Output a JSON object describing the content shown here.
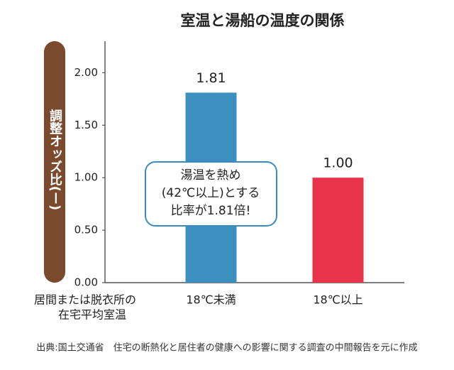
{
  "chart_data": {
    "type": "bar",
    "title": "室温と湯船の温度の関係",
    "ylabel": "調整オッズ比(ー)",
    "xlabel": [
      "居間または脱衣所の",
      "在宅平均室温"
    ],
    "categories": [
      "18℃未満",
      "18℃以上"
    ],
    "values": [
      1.81,
      1.0
    ],
    "value_labels": [
      "1.81",
      "1.00"
    ],
    "colors": [
      "#3d8fc0",
      "#e8334a"
    ],
    "ylim": [
      0,
      2.3
    ],
    "yticks": [
      {
        "value": 0,
        "label": "0.00"
      },
      {
        "value": 0.5,
        "label": "0.50"
      },
      {
        "value": 1,
        "label": "1.00"
      },
      {
        "value": 1.5,
        "label": "1.50"
      },
      {
        "value": 2,
        "label": "2.00"
      }
    ],
    "annotation": [
      "湯温を熱め",
      "(42℃以上)とする",
      "比率が1.81倍!"
    ],
    "source": "出典:国土交通省　住宅の断熱化と居住者の健康への影響に関する調査の中間報告を元に作成"
  }
}
